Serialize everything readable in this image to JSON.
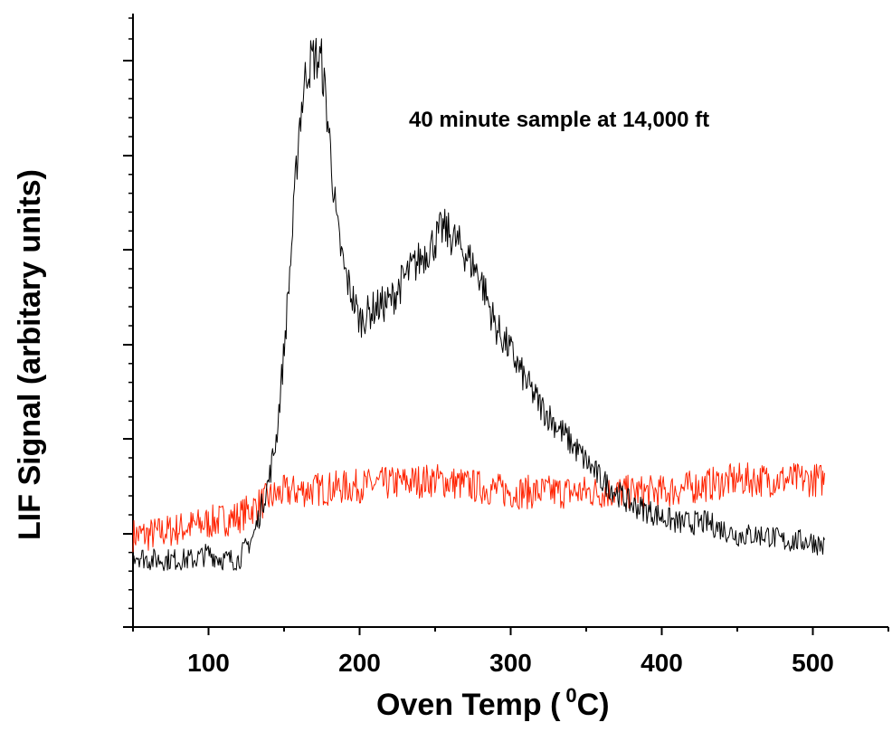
{
  "chart_data": {
    "type": "line",
    "xlabel": "Oven Temp (",
    "xlabel_sup": "0",
    "xlabel_unit": "C)",
    "ylabel": "LIF Signal (arbitary units)",
    "annotation": "40 minute sample at 14,000 ft",
    "xlim": [
      50,
      550
    ],
    "ylim": [
      0,
      1
    ],
    "x_ticks": [
      100,
      200,
      300,
      400,
      500
    ],
    "x_tick_labels": [
      "100",
      "200",
      "300",
      "400",
      "500"
    ],
    "y_tick_labels_shown": false,
    "grid": false,
    "colors": {
      "sample": "#000000",
      "blank": "#ff2200"
    },
    "series": [
      {
        "key": "sample",
        "x": [
          50,
          60,
          70,
          80,
          90,
          100,
          110,
          120,
          130,
          140,
          145,
          150,
          155,
          160,
          165,
          170,
          175,
          180,
          185,
          190,
          200,
          210,
          220,
          230,
          240,
          250,
          255,
          260,
          270,
          280,
          290,
          300,
          310,
          320,
          330,
          340,
          350,
          360,
          370,
          380,
          390,
          400,
          410,
          420,
          430,
          440,
          450,
          460,
          470,
          480,
          490,
          500,
          508
        ],
        "values": [
          0.12,
          0.11,
          0.11,
          0.11,
          0.11,
          0.12,
          0.11,
          0.11,
          0.15,
          0.24,
          0.31,
          0.45,
          0.62,
          0.82,
          0.91,
          0.93,
          0.92,
          0.8,
          0.65,
          0.58,
          0.5,
          0.52,
          0.53,
          0.57,
          0.6,
          0.63,
          0.65,
          0.64,
          0.61,
          0.57,
          0.49,
          0.45,
          0.4,
          0.36,
          0.33,
          0.3,
          0.27,
          0.24,
          0.22,
          0.2,
          0.19,
          0.18,
          0.17,
          0.17,
          0.17,
          0.16,
          0.15,
          0.15,
          0.15,
          0.14,
          0.14,
          0.14,
          0.13
        ]
      },
      {
        "key": "blank",
        "x": [
          50,
          60,
          80,
          100,
          120,
          140,
          150,
          200,
          250,
          300,
          350,
          400,
          450,
          500,
          508
        ],
        "values": [
          0.15,
          0.15,
          0.16,
          0.17,
          0.18,
          0.21,
          0.22,
          0.23,
          0.24,
          0.22,
          0.22,
          0.22,
          0.24,
          0.24,
          0.24
        ]
      }
    ]
  }
}
